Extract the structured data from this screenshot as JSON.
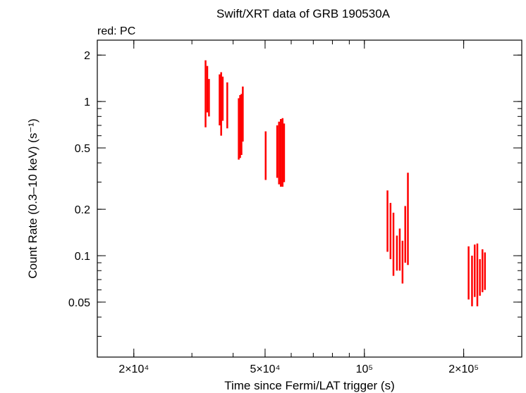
{
  "chart_data": {
    "type": "scatter",
    "title": "Swift/XRT data of GRB 190530A",
    "annotation": "red: PC",
    "xlabel": "Time since Fermi/LAT trigger (s)",
    "ylabel": "Count Rate (0.3–10 keV) (s⁻¹)",
    "xscale": "log",
    "yscale": "log",
    "xlim": [
      15500,
      300000
    ],
    "ylim": [
      0.022,
      2.5
    ],
    "x_ticks": [
      {
        "value": 20000,
        "label": "2×10⁴"
      },
      {
        "value": 50000,
        "label": "5×10⁴"
      },
      {
        "value": 100000,
        "label": "10⁵"
      },
      {
        "value": 200000,
        "label": "2×10⁵"
      }
    ],
    "y_ticks": [
      {
        "value": 2,
        "label": "2"
      },
      {
        "value": 1,
        "label": "1"
      },
      {
        "value": 0.5,
        "label": "0.5"
      },
      {
        "value": 0.2,
        "label": "0.2"
      },
      {
        "value": 0.1,
        "label": "0.1"
      },
      {
        "value": 0.05,
        "label": "0.05"
      }
    ],
    "series": [
      {
        "color": "#ff0000",
        "points": [
          {
            "x": 33000,
            "y": 1.1,
            "ylo": 0.68,
            "yhi": 1.85
          },
          {
            "x": 33400,
            "y": 1.2,
            "ylo": 0.85,
            "yhi": 1.7
          },
          {
            "x": 33800,
            "y": 1.05,
            "ylo": 0.8,
            "yhi": 1.4
          },
          {
            "x": 36400,
            "y": 1.05,
            "ylo": 0.7,
            "yhi": 1.5
          },
          {
            "x": 36800,
            "y": 0.95,
            "ylo": 0.6,
            "yhi": 1.55
          },
          {
            "x": 37200,
            "y": 1.0,
            "ylo": 0.75,
            "yhi": 1.45
          },
          {
            "x": 38400,
            "y": 1.0,
            "ylo": 0.67,
            "yhi": 1.33
          },
          {
            "x": 41600,
            "y": 0.75,
            "ylo": 0.42,
            "yhi": 1.05
          },
          {
            "x": 42000,
            "y": 0.65,
            "ylo": 0.43,
            "yhi": 1.1
          },
          {
            "x": 42400,
            "y": 0.8,
            "ylo": 0.45,
            "yhi": 1.12
          },
          {
            "x": 42800,
            "y": 0.9,
            "ylo": 0.55,
            "yhi": 1.25
          },
          {
            "x": 50200,
            "y": 0.47,
            "ylo": 0.31,
            "yhi": 0.64
          },
          {
            "x": 54400,
            "y": 0.5,
            "ylo": 0.32,
            "yhi": 0.7
          },
          {
            "x": 55100,
            "y": 0.45,
            "ylo": 0.29,
            "yhi": 0.74
          },
          {
            "x": 55800,
            "y": 0.4,
            "ylo": 0.28,
            "yhi": 0.77
          },
          {
            "x": 56500,
            "y": 0.52,
            "ylo": 0.28,
            "yhi": 0.78
          },
          {
            "x": 57100,
            "y": 0.48,
            "ylo": 0.3,
            "yhi": 0.72
          },
          {
            "x": 117500,
            "y": 0.17,
            "ylo": 0.106,
            "yhi": 0.265
          },
          {
            "x": 120000,
            "y": 0.15,
            "ylo": 0.095,
            "yhi": 0.22
          },
          {
            "x": 122500,
            "y": 0.12,
            "ylo": 0.074,
            "yhi": 0.19
          },
          {
            "x": 125500,
            "y": 0.1,
            "ylo": 0.08,
            "yhi": 0.135
          },
          {
            "x": 128000,
            "y": 0.12,
            "ylo": 0.08,
            "yhi": 0.15
          },
          {
            "x": 130500,
            "y": 0.1,
            "ylo": 0.066,
            "yhi": 0.125
          },
          {
            "x": 133000,
            "y": 0.14,
            "ylo": 0.09,
            "yhi": 0.21
          },
          {
            "x": 135500,
            "y": 0.2,
            "ylo": 0.087,
            "yhi": 0.345
          },
          {
            "x": 207000,
            "y": 0.08,
            "ylo": 0.052,
            "yhi": 0.115
          },
          {
            "x": 212000,
            "y": 0.07,
            "ylo": 0.047,
            "yhi": 0.1
          },
          {
            "x": 216000,
            "y": 0.08,
            "ylo": 0.054,
            "yhi": 0.118
          },
          {
            "x": 220000,
            "y": 0.075,
            "ylo": 0.047,
            "yhi": 0.12
          },
          {
            "x": 224000,
            "y": 0.068,
            "ylo": 0.055,
            "yhi": 0.095
          },
          {
            "x": 228000,
            "y": 0.078,
            "ylo": 0.058,
            "yhi": 0.11
          },
          {
            "x": 232000,
            "y": 0.07,
            "ylo": 0.06,
            "yhi": 0.105
          }
        ]
      }
    ]
  }
}
